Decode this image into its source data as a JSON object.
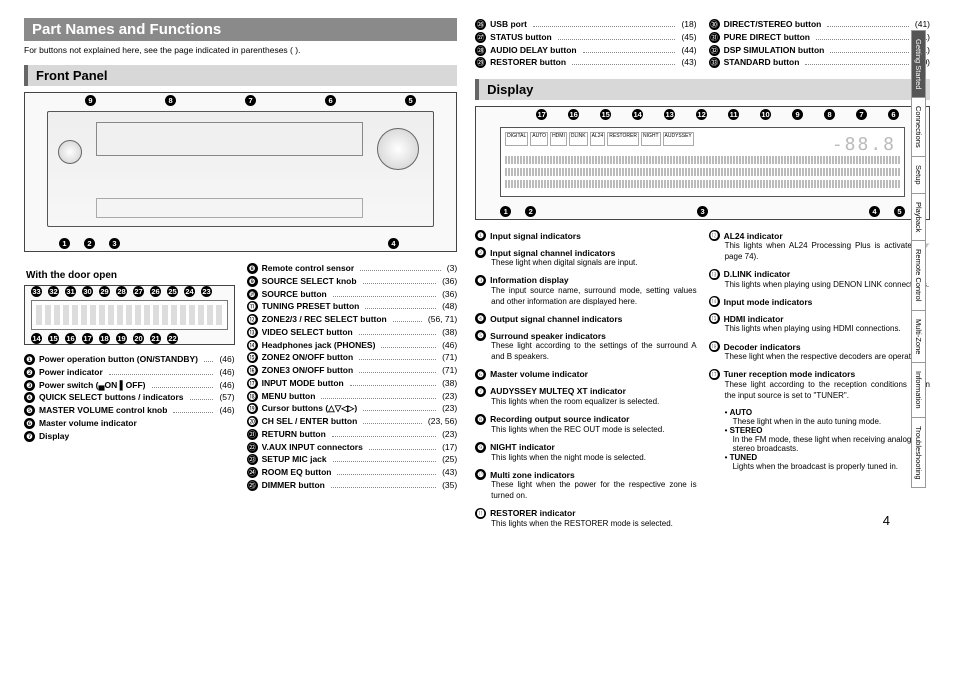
{
  "page": {
    "title": "Part Names and Functions",
    "intro": "For buttons not explained here, see the page indicated in parentheses ( ).",
    "number": "4"
  },
  "subtitles": {
    "front_panel": "Front Panel",
    "display": "Display",
    "door_open": "With the door open"
  },
  "side_tabs": [
    "Getting Started",
    "Connections",
    "Setup",
    "Playback",
    "Remote Control",
    "Multi-Zone",
    "Information",
    "Troubleshooting"
  ],
  "front_items_left": [
    {
      "n": "❶",
      "label": "Power  operation button (ON/STANDBY)",
      "pg": "(46)",
      "bold": true
    },
    {
      "n": "❷",
      "label": "Power indicator",
      "pg": "(46)",
      "bold": true
    },
    {
      "n": "❸",
      "label": "Power switch (▄ON ▌OFF)",
      "pg": "(46)",
      "bold": true
    },
    {
      "n": "❹",
      "label": "QUICK SELECT buttons / indicators",
      "pg": "(57)",
      "bold": true
    },
    {
      "n": "❺",
      "label": "MASTER VOLUME control knob",
      "pg": "(46)",
      "bold": true
    },
    {
      "n": "❻",
      "label": "Master volume indicator",
      "pg": "",
      "bold": true
    },
    {
      "n": "❼",
      "label": "Display",
      "pg": "",
      "bold": true
    }
  ],
  "front_items_right": [
    {
      "n": "❽",
      "label": "Remote control sensor",
      "pg": "(3)",
      "bold": true
    },
    {
      "n": "❾",
      "label": "SOURCE SELECT knob",
      "pg": "(36)",
      "bold": true
    },
    {
      "n": "❿",
      "label": "SOURCE button",
      "pg": "(36)",
      "bold": true
    },
    {
      "n": "⓫",
      "label": "TUNING PRESET button",
      "pg": "(48)",
      "bold": true
    },
    {
      "n": "⓬",
      "label": "ZONE2/3 / REC SELECT button",
      "pg": "(56, 71)",
      "bold": true
    },
    {
      "n": "⓭",
      "label": "VIDEO SELECT button",
      "pg": "(38)",
      "bold": true
    },
    {
      "n": "⓮",
      "label": "Headphones jack (PHONES)",
      "pg": "(46)",
      "bold": true
    },
    {
      "n": "⓯",
      "label": "ZONE2 ON/OFF button",
      "pg": "(71)",
      "bold": true
    },
    {
      "n": "⓰",
      "label": "ZONE3 ON/OFF button",
      "pg": "(71)",
      "bold": true
    },
    {
      "n": "⓱",
      "label": "INPUT MODE button",
      "pg": "(38)",
      "bold": true
    },
    {
      "n": "⓲",
      "label": "MENU button",
      "pg": "(23)",
      "bold": true
    },
    {
      "n": "⓳",
      "label": "Cursor buttons (△▽◁▷)",
      "pg": "(23)",
      "bold": true
    },
    {
      "n": "⓴",
      "label": "CH SEL / ENTER button",
      "pg": "(23, 56)",
      "bold": true
    },
    {
      "n": "㉑",
      "label": "RETURN button",
      "pg": "(23)",
      "bold": true
    },
    {
      "n": "㉒",
      "label": "V.AUX INPUT connectors",
      "pg": "(17)",
      "bold": true
    },
    {
      "n": "㉓",
      "label": "SETUP MIC jack",
      "pg": "(25)",
      "bold": true
    },
    {
      "n": "㉔",
      "label": "ROOM EQ button",
      "pg": "(43)",
      "bold": true
    },
    {
      "n": "㉕",
      "label": "DIMMER button",
      "pg": "(35)",
      "bold": true
    }
  ],
  "top_right_items": [
    {
      "n": "㉖",
      "label": "USB port",
      "pg": "(18)",
      "bold": true
    },
    {
      "n": "㉗",
      "label": "STATUS button",
      "pg": "(45)",
      "bold": true
    },
    {
      "n": "㉘",
      "label": "AUDIO DELAY button",
      "pg": "(44)",
      "bold": true
    },
    {
      "n": "㉙",
      "label": "RESTORER button",
      "pg": "(43)",
      "bold": true
    }
  ],
  "top_right_items2": [
    {
      "n": "㉚",
      "label": "DIRECT/STEREO button",
      "pg": "(41)",
      "bold": true
    },
    {
      "n": "㉛",
      "label": "PURE DIRECT button",
      "pg": "(41)",
      "bold": true
    },
    {
      "n": "㉜",
      "label": "DSP SIMULATION button",
      "pg": "(41)",
      "bold": true
    },
    {
      "n": "㉝",
      "label": "STANDARD button",
      "pg": "(40)",
      "bold": true
    }
  ],
  "display_left": [
    {
      "n": "❶",
      "t": "Input signal indicators",
      "d": ""
    },
    {
      "n": "❷",
      "t": "Input signal channel indicators",
      "d": "These light when digital signals are input."
    },
    {
      "n": "❸",
      "t": "Information display",
      "d": "The input source name, surround mode, setting values and other information are displayed here."
    },
    {
      "n": "❹",
      "t": "Output signal channel indicators",
      "d": ""
    },
    {
      "n": "❺",
      "t": "Surround speaker indicators",
      "d": "These light according to the settings of the surround A and B speakers."
    },
    {
      "n": "❻",
      "t": "Master volume indicator",
      "d": ""
    },
    {
      "n": "❼",
      "t": "AUDYSSEY MULTEQ XT indicator",
      "d": "This lights when the room equalizer is selected."
    },
    {
      "n": "❽",
      "t": "Recording output source indicator",
      "d": "This lights when the REC OUT mode is selected."
    },
    {
      "n": "❾",
      "t": "NIGHT indicator",
      "d": "This lights when the night mode is selected."
    },
    {
      "n": "❿",
      "t": "Multi zone indicators",
      "d": "These light when the power for the respective zone is turned on."
    },
    {
      "n": "⓫",
      "t": "RESTORER indicator",
      "d": "This lights when the RESTORER mode is selected."
    }
  ],
  "display_right": [
    {
      "n": "⓬",
      "t": "AL24 indicator",
      "d": "This lights when AL24 Processing Plus is activated (☞page 74)."
    },
    {
      "n": "⓭",
      "t": "D.LINK indicator",
      "d": "This lights when playing using DENON LINK connections."
    },
    {
      "n": "⓮",
      "t": "Input mode indicators",
      "d": ""
    },
    {
      "n": "⓯",
      "t": "HDMI indicator",
      "d": "This lights when playing using HDMI connections."
    },
    {
      "n": "⓰",
      "t": "Decoder indicators",
      "d": "These light when the respective decoders are operating."
    },
    {
      "n": "⓱",
      "t": "Tuner reception mode indicators",
      "d": "These light according to the reception conditions when the input source is set to \"TUNER\"."
    }
  ],
  "tuner_modes": [
    {
      "bt": "AUTO",
      "d": "These light when in the auto tuning mode."
    },
    {
      "bt": "STEREO",
      "d": "In the FM mode, these light when receiving analog stereo broadcasts."
    },
    {
      "bt": "TUNED",
      "d": "Lights when the broadcast is properly tuned in."
    }
  ]
}
